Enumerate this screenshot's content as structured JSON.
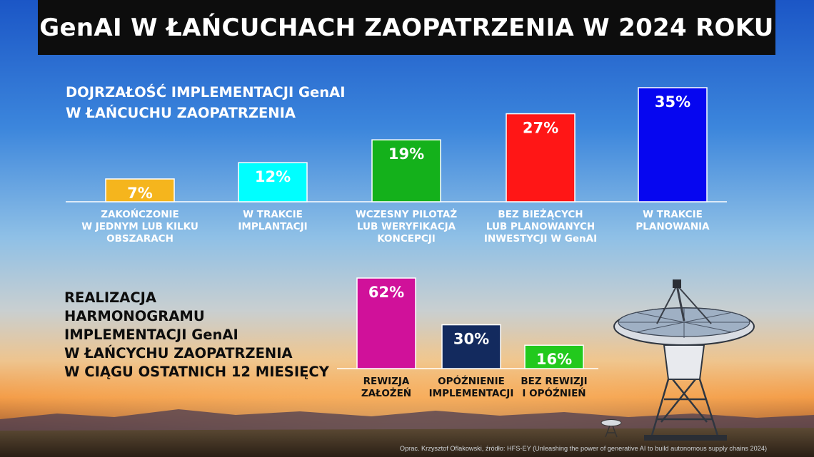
{
  "title": "GenAI W ŁAŃCUCHACH ZAOPATRZENIA W 2024 ROKU",
  "colors": {
    "sky_top": "#1a55c4",
    "sky_mid": "#86b4e0",
    "horizon": "#f2a254",
    "title_bar": "#0d0d0d"
  },
  "chart_data": [
    {
      "type": "bar",
      "title": "DOJRZAŁOŚĆ  IMPLEMENTACJI GenAI\nW ŁAŃCUCHU ZAOPATRZENIA",
      "categories": [
        "ZAKOŃCZONIE\nW JEDNYM LUB KILKU\nOBSZARACH",
        "W TRAKCIE\nIMPLANTACJI",
        "WCZESNY PILOTAŻ\nLUB WERYFIKACJA\nKONCEPCJI",
        "BEZ BIEŻĄCYCH\nLUB PLANOWANYCH\nINWESTYCJI W GenAI",
        "W TRAKCIE\nPLANOWANIA"
      ],
      "values": [
        7,
        12,
        19,
        27,
        35
      ],
      "value_labels": [
        "7%",
        "12%",
        "19%",
        "27%",
        "35%"
      ],
      "colors": [
        "#f5b51d",
        "#00ffff",
        "#14b11b",
        "#ff1616",
        "#0606f0"
      ],
      "label_colors": [
        "#ffffff",
        "#ffffff",
        "#ffffff",
        "#ffffff",
        "#ffffff"
      ],
      "unit": "%",
      "ylim": [
        0,
        35
      ],
      "grid": false,
      "legend": "none"
    },
    {
      "type": "bar",
      "title": "REALIZACJA\nHARMONOGRAMU\nIMPLEMENTACJI GenAI\nW ŁAŃCYCHU ZAOPATRZENIA\nW CIĄGU OSTATNICH 12 MIESIĘCY",
      "categories": [
        "REWIZJA\nZAŁOŻEŃ",
        "OPÓŹNIENIE\nIMPLEMENTACJI",
        "BEZ REWIZJI\nI OPÓŹNIEŃ"
      ],
      "values": [
        62,
        30,
        16
      ],
      "value_labels": [
        "62%",
        "30%",
        "16%"
      ],
      "colors": [
        "#d0119a",
        "#132a5e",
        "#22c91d"
      ],
      "label_colors": [
        "#ffffff",
        "#ffffff",
        "#ffffff"
      ],
      "unit": "%",
      "ylim": [
        0,
        62
      ],
      "grid": false,
      "legend": "none"
    }
  ],
  "footer": "Oprac. Krzysztof Oflakowski, źródło: HFS-EY (Unleashing the power of generative AI to build autonomous supply chains 2024)",
  "illustration": {
    "icon": "radio-telescope-dish-icon"
  }
}
